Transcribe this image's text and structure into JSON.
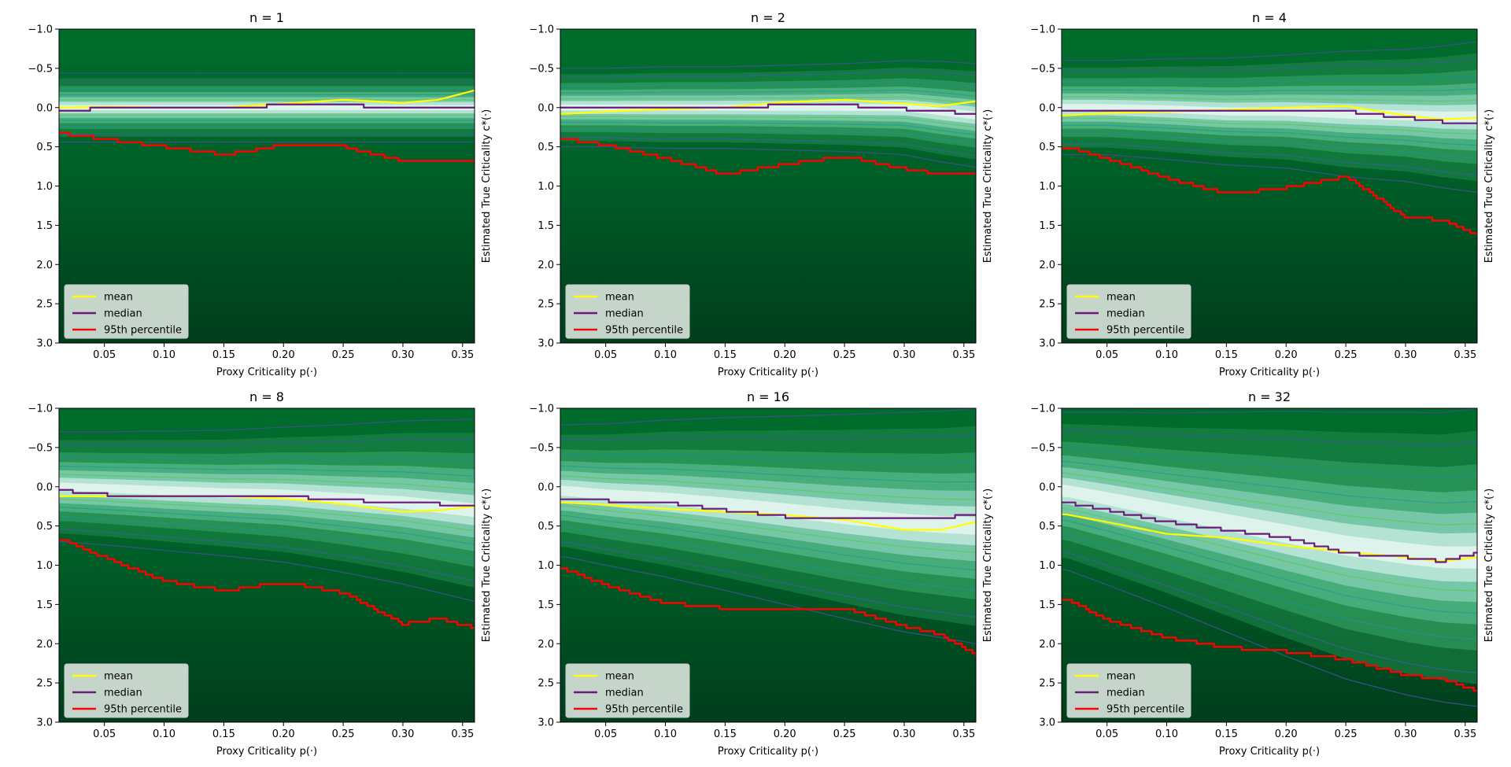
{
  "figure": {
    "xlabel": "Proxy Criticality p(·)",
    "ylabel": "Estimated True Criticality c*(·)",
    "x_ticks": [
      "0.05",
      "0.10",
      "0.15",
      "0.20",
      "0.25",
      "0.30",
      "0.35"
    ],
    "y_ticks": [
      "−1.0",
      "−0.5",
      "0.0",
      "0.5",
      "1.0",
      "1.5",
      "2.0",
      "2.5",
      "3.0"
    ],
    "legend": [
      "mean",
      "median",
      "95th percentile"
    ],
    "colors": {
      "background_dark": "#003d1c",
      "background_mid": "#006d2c",
      "density_light": "#e8f6f3",
      "mean": "#ffff00",
      "median": "#6a1b7a",
      "p95": "#ff0000",
      "contour": "#2c7fb8"
    }
  },
  "chart_data": [
    {
      "type": "heatmap",
      "title": "n = 1",
      "xlim": [
        0.012,
        0.36
      ],
      "ylim": [
        3.0,
        -1.0
      ],
      "x": [
        0.015,
        0.05,
        0.1,
        0.15,
        0.2,
        0.25,
        0.3,
        0.33,
        0.36
      ],
      "mean": [
        0.0,
        -0.01,
        0.0,
        0.0,
        -0.05,
        -0.1,
        -0.06,
        -0.1,
        -0.22
      ],
      "median": [
        0.05,
        0.0,
        0.0,
        0.0,
        -0.03,
        -0.03,
        0.0,
        0.0,
        0.0
      ],
      "p95": [
        0.33,
        0.4,
        0.5,
        0.6,
        0.48,
        0.5,
        0.68,
        0.7,
        0.68
      ],
      "density_center": [
        0.0,
        0.0,
        0.0,
        0.0,
        0.0,
        0.0,
        0.0,
        0.0,
        0.0
      ],
      "density_spread": [
        0.22,
        0.22,
        0.22,
        0.22,
        0.22,
        0.22,
        0.22,
        0.22,
        0.22
      ]
    },
    {
      "type": "heatmap",
      "title": "n = 2",
      "xlim": [
        0.012,
        0.36
      ],
      "ylim": [
        3.0,
        -1.0
      ],
      "x": [
        0.015,
        0.05,
        0.1,
        0.15,
        0.2,
        0.25,
        0.3,
        0.33,
        0.36
      ],
      "mean": [
        0.08,
        0.05,
        0.02,
        0.0,
        -0.07,
        -0.1,
        -0.05,
        -0.02,
        -0.08
      ],
      "median": [
        0.0,
        0.0,
        0.0,
        0.0,
        -0.03,
        -0.03,
        0.02,
        0.05,
        0.08
      ],
      "p95": [
        0.4,
        0.48,
        0.65,
        0.85,
        0.72,
        0.62,
        0.78,
        0.85,
        0.82
      ],
      "density_center": [
        0.0,
        0.0,
        0.0,
        0.0,
        0.0,
        0.0,
        0.0,
        0.05,
        0.1
      ],
      "density_spread": [
        0.25,
        0.25,
        0.26,
        0.26,
        0.27,
        0.28,
        0.3,
        0.32,
        0.33
      ]
    },
    {
      "type": "heatmap",
      "title": "n = 4",
      "xlim": [
        0.012,
        0.36
      ],
      "ylim": [
        3.0,
        -1.0
      ],
      "x": [
        0.015,
        0.05,
        0.1,
        0.15,
        0.2,
        0.25,
        0.3,
        0.33,
        0.36
      ],
      "mean": [
        0.1,
        0.07,
        0.05,
        0.03,
        0.0,
        -0.02,
        0.1,
        0.15,
        0.13
      ],
      "median": [
        0.05,
        0.05,
        0.05,
        0.05,
        0.05,
        0.05,
        0.13,
        0.18,
        0.18
      ],
      "p95": [
        0.5,
        0.65,
        0.9,
        1.1,
        1.02,
        0.88,
        1.4,
        1.43,
        1.62
      ],
      "density_center": [
        0.0,
        0.0,
        0.02,
        0.05,
        0.05,
        0.08,
        0.1,
        0.12,
        0.12
      ],
      "density_spread": [
        0.3,
        0.3,
        0.32,
        0.34,
        0.36,
        0.4,
        0.42,
        0.45,
        0.48
      ]
    },
    {
      "type": "heatmap",
      "title": "n = 8",
      "xlim": [
        0.012,
        0.36
      ],
      "ylim": [
        3.0,
        -1.0
      ],
      "x": [
        0.015,
        0.05,
        0.1,
        0.15,
        0.2,
        0.25,
        0.3,
        0.33,
        0.36
      ],
      "mean": [
        0.12,
        0.12,
        0.12,
        0.12,
        0.15,
        0.22,
        0.32,
        0.3,
        0.25
      ],
      "median": [
        0.05,
        0.1,
        0.1,
        0.1,
        0.12,
        0.17,
        0.2,
        0.22,
        0.22
      ],
      "p95": [
        0.68,
        0.9,
        1.2,
        1.32,
        1.22,
        1.35,
        1.75,
        1.68,
        1.8
      ],
      "density_center": [
        0.0,
        0.02,
        0.05,
        0.08,
        0.1,
        0.15,
        0.2,
        0.25,
        0.3
      ],
      "density_spread": [
        0.35,
        0.36,
        0.38,
        0.4,
        0.43,
        0.47,
        0.52,
        0.55,
        0.58
      ]
    },
    {
      "type": "heatmap",
      "title": "n = 16",
      "xlim": [
        0.012,
        0.36
      ],
      "ylim": [
        3.0,
        -1.0
      ],
      "x": [
        0.015,
        0.05,
        0.1,
        0.15,
        0.2,
        0.25,
        0.3,
        0.33,
        0.36
      ],
      "mean": [
        0.2,
        0.23,
        0.28,
        0.32,
        0.36,
        0.42,
        0.55,
        0.55,
        0.45
      ],
      "median": [
        0.15,
        0.18,
        0.2,
        0.3,
        0.38,
        0.4,
        0.4,
        0.4,
        0.35
      ],
      "p95": [
        1.05,
        1.25,
        1.48,
        1.55,
        1.55,
        1.55,
        1.78,
        1.88,
        2.15
      ],
      "density_center": [
        0.05,
        0.1,
        0.15,
        0.22,
        0.3,
        0.38,
        0.45,
        0.48,
        0.5
      ],
      "density_spread": [
        0.42,
        0.45,
        0.5,
        0.55,
        0.6,
        0.65,
        0.7,
        0.72,
        0.75
      ]
    },
    {
      "type": "heatmap",
      "title": "n = 32",
      "xlim": [
        0.012,
        0.36
      ],
      "ylim": [
        3.0,
        -1.0
      ],
      "x": [
        0.015,
        0.05,
        0.1,
        0.15,
        0.2,
        0.25,
        0.3,
        0.33,
        0.36
      ],
      "mean": [
        0.35,
        0.45,
        0.6,
        0.65,
        0.75,
        0.83,
        0.9,
        0.95,
        0.9
      ],
      "median": [
        0.2,
        0.3,
        0.45,
        0.55,
        0.65,
        0.85,
        0.9,
        0.95,
        0.85
      ],
      "p95": [
        1.42,
        1.7,
        1.92,
        2.05,
        2.1,
        2.2,
        2.4,
        2.45,
        2.6
      ],
      "density_center": [
        0.05,
        0.15,
        0.3,
        0.45,
        0.6,
        0.75,
        0.85,
        0.9,
        0.9
      ],
      "density_spread": [
        0.5,
        0.55,
        0.62,
        0.7,
        0.78,
        0.85,
        0.9,
        0.92,
        0.95
      ]
    }
  ]
}
